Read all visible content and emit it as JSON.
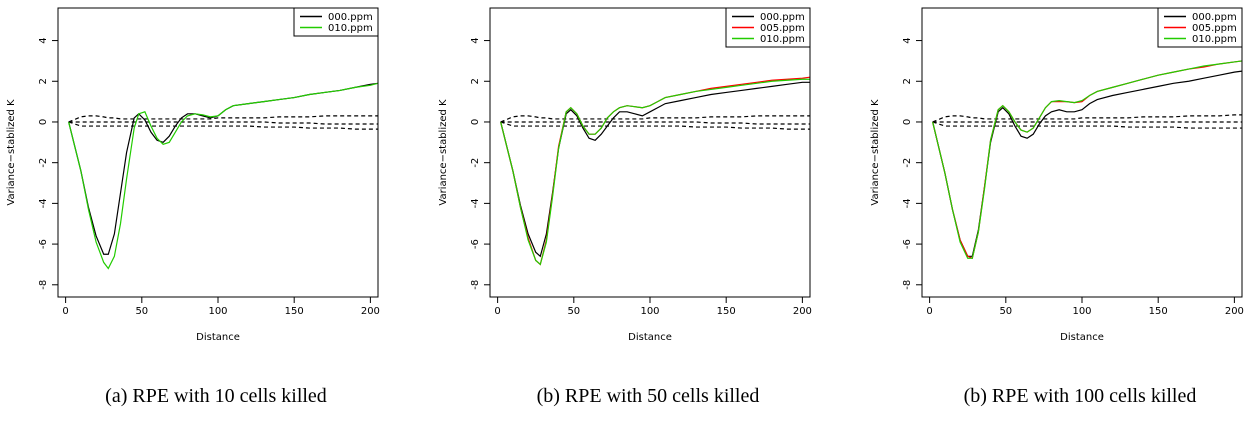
{
  "chart_data": [
    {
      "type": "line",
      "x_label": "Distance",
      "y_label": "Variance−stablized K",
      "caption": "(a) RPE with 10 cells killed",
      "xlim": [
        -5,
        205
      ],
      "ylim": [
        -8.6,
        5.6
      ],
      "xticks": [
        0,
        50,
        100,
        150,
        200
      ],
      "yticks": [
        -8,
        -6,
        -4,
        -2,
        0,
        2,
        4
      ],
      "legend": "top-right",
      "x": [
        2,
        10,
        15,
        20,
        25,
        28,
        32,
        36,
        40,
        45,
        48,
        52,
        56,
        60,
        64,
        68,
        72,
        76,
        80,
        85,
        90,
        95,
        100,
        105,
        110,
        120,
        130,
        140,
        150,
        160,
        170,
        180,
        190,
        200,
        205
      ],
      "series": [
        {
          "name": "000.ppm",
          "color": "#000000",
          "values": [
            0,
            -2.4,
            -4.2,
            -5.6,
            -6.5,
            -6.5,
            -5.5,
            -3.5,
            -1.5,
            0.2,
            0.4,
            0.1,
            -0.5,
            -0.9,
            -1.0,
            -0.7,
            -0.2,
            0.2,
            0.4,
            0.4,
            0.3,
            0.2,
            0.3,
            0.6,
            0.8,
            0.9,
            1.0,
            1.1,
            1.2,
            1.35,
            1.45,
            1.55,
            1.7,
            1.85,
            1.9
          ]
        },
        {
          "name": "010.ppm",
          "color": "#22cc00",
          "values": [
            0,
            -2.4,
            -4.3,
            -5.9,
            -6.9,
            -7.2,
            -6.6,
            -5.0,
            -2.8,
            -0.3,
            0.4,
            0.5,
            -0.2,
            -0.8,
            -1.1,
            -1.0,
            -0.5,
            0.0,
            0.3,
            0.4,
            0.35,
            0.25,
            0.3,
            0.6,
            0.8,
            0.9,
            1.0,
            1.1,
            1.2,
            1.35,
            1.45,
            1.55,
            1.7,
            1.8,
            1.9
          ]
        }
      ],
      "reference_lines": [
        {
          "color": "#000000",
          "style": "dashed",
          "values": [
            0,
            0.25,
            0.3,
            0.3,
            0.25,
            0.2,
            0.2,
            0.15,
            0.15,
            0.15,
            0.15,
            0.15,
            0.15,
            0.15,
            0.15,
            0.15,
            0.15,
            0.15,
            0.15,
            0.15,
            0.15,
            0.15,
            0.2,
            0.2,
            0.2,
            0.2,
            0.2,
            0.25,
            0.25,
            0.25,
            0.3,
            0.3,
            0.3,
            0.3,
            0.3
          ]
        },
        {
          "color": "#000000",
          "style": "dashed",
          "values": [
            0,
            0,
            0,
            0,
            0,
            0,
            0,
            0,
            0,
            0,
            0,
            0,
            0,
            0,
            0,
            0,
            0,
            0,
            0,
            0,
            0,
            0,
            0,
            0,
            0,
            0,
            0,
            -0.05,
            -0.05,
            -0.05,
            -0.1,
            -0.1,
            -0.1,
            -0.1,
            -0.1
          ]
        },
        {
          "color": "#000000",
          "style": "dashed",
          "values": [
            0,
            -0.2,
            -0.2,
            -0.2,
            -0.2,
            -0.2,
            -0.2,
            -0.2,
            -0.2,
            -0.2,
            -0.2,
            -0.2,
            -0.2,
            -0.2,
            -0.2,
            -0.2,
            -0.2,
            -0.2,
            -0.2,
            -0.2,
            -0.2,
            -0.2,
            -0.2,
            -0.2,
            -0.2,
            -0.2,
            -0.25,
            -0.25,
            -0.25,
            -0.3,
            -0.3,
            -0.3,
            -0.35,
            -0.35,
            -0.35
          ]
        }
      ]
    },
    {
      "type": "line",
      "x_label": "Distance",
      "y_label": "Variance−stablized K",
      "caption": "(b) RPE with 50 cells killed",
      "xlim": [
        -5,
        205
      ],
      "ylim": [
        -8.6,
        5.6
      ],
      "xticks": [
        0,
        50,
        100,
        150,
        200
      ],
      "yticks": [
        -8,
        -6,
        -4,
        -2,
        0,
        2,
        4
      ],
      "legend": "top-right",
      "x": [
        2,
        10,
        15,
        20,
        25,
        28,
        32,
        36,
        40,
        45,
        48,
        52,
        56,
        60,
        64,
        68,
        72,
        76,
        80,
        85,
        90,
        95,
        100,
        105,
        110,
        120,
        130,
        140,
        150,
        160,
        170,
        180,
        190,
        200,
        205
      ],
      "series": [
        {
          "name": "000.ppm",
          "color": "#000000",
          "values": [
            0,
            -2.4,
            -4.1,
            -5.5,
            -6.4,
            -6.6,
            -5.5,
            -3.5,
            -1.3,
            0.4,
            0.6,
            0.3,
            -0.3,
            -0.8,
            -0.9,
            -0.6,
            -0.2,
            0.2,
            0.5,
            0.5,
            0.4,
            0.3,
            0.5,
            0.7,
            0.9,
            1.05,
            1.2,
            1.35,
            1.45,
            1.55,
            1.65,
            1.75,
            1.85,
            1.95,
            1.95
          ]
        },
        {
          "name": "005.ppm",
          "color": "#ff0000",
          "values": [
            0,
            -2.4,
            -4.2,
            -5.7,
            -6.8,
            -7.0,
            -5.8,
            -3.6,
            -1.2,
            0.5,
            0.7,
            0.4,
            -0.2,
            -0.6,
            -0.6,
            -0.3,
            0.2,
            0.5,
            0.7,
            0.8,
            0.75,
            0.7,
            0.8,
            1.0,
            1.2,
            1.35,
            1.5,
            1.65,
            1.75,
            1.85,
            1.95,
            2.05,
            2.1,
            2.15,
            2.2
          ]
        },
        {
          "name": "010.ppm",
          "color": "#22cc00",
          "values": [
            0,
            -2.4,
            -4.2,
            -5.8,
            -6.8,
            -7.0,
            -5.9,
            -3.7,
            -1.3,
            0.5,
            0.7,
            0.4,
            -0.2,
            -0.6,
            -0.6,
            -0.3,
            0.2,
            0.5,
            0.7,
            0.8,
            0.75,
            0.7,
            0.8,
            1.0,
            1.2,
            1.35,
            1.5,
            1.6,
            1.7,
            1.8,
            1.9,
            2.0,
            2.05,
            2.1,
            2.1
          ]
        }
      ],
      "reference_lines": [
        {
          "color": "#000000",
          "style": "dashed",
          "values": [
            0,
            0.25,
            0.3,
            0.3,
            0.25,
            0.2,
            0.2,
            0.15,
            0.15,
            0.15,
            0.15,
            0.15,
            0.15,
            0.15,
            0.15,
            0.15,
            0.15,
            0.15,
            0.15,
            0.15,
            0.15,
            0.15,
            0.2,
            0.2,
            0.2,
            0.2,
            0.2,
            0.25,
            0.25,
            0.25,
            0.3,
            0.3,
            0.3,
            0.3,
            0.3
          ]
        },
        {
          "color": "#000000",
          "style": "dashed",
          "values": [
            0,
            0,
            0,
            0,
            0,
            0,
            0,
            0,
            0,
            0,
            0,
            0,
            0,
            0,
            0,
            0,
            0,
            0,
            0,
            0,
            0,
            0,
            0,
            0,
            0,
            0,
            0,
            -0.05,
            -0.05,
            -0.05,
            -0.1,
            -0.1,
            -0.1,
            -0.1,
            -0.1
          ]
        },
        {
          "color": "#000000",
          "style": "dashed",
          "values": [
            0,
            -0.2,
            -0.2,
            -0.2,
            -0.2,
            -0.2,
            -0.2,
            -0.2,
            -0.2,
            -0.2,
            -0.2,
            -0.2,
            -0.2,
            -0.2,
            -0.2,
            -0.2,
            -0.2,
            -0.2,
            -0.2,
            -0.2,
            -0.2,
            -0.2,
            -0.2,
            -0.2,
            -0.2,
            -0.2,
            -0.25,
            -0.25,
            -0.25,
            -0.3,
            -0.3,
            -0.3,
            -0.35,
            -0.35,
            -0.35
          ]
        }
      ]
    },
    {
      "type": "line",
      "x_label": "Distance",
      "y_label": "Variance−stablized K",
      "caption": "(b) RPE with 100 cells killed",
      "xlim": [
        -5,
        205
      ],
      "ylim": [
        -8.6,
        5.6
      ],
      "xticks": [
        0,
        50,
        100,
        150,
        200
      ],
      "yticks": [
        -8,
        -6,
        -4,
        -2,
        0,
        2,
        4
      ],
      "legend": "top-right",
      "x": [
        2,
        10,
        15,
        20,
        25,
        28,
        32,
        36,
        40,
        45,
        48,
        52,
        56,
        60,
        64,
        68,
        72,
        76,
        80,
        85,
        90,
        95,
        100,
        105,
        110,
        120,
        130,
        140,
        150,
        160,
        170,
        180,
        190,
        200,
        205
      ],
      "series": [
        {
          "name": "000.ppm",
          "color": "#000000",
          "values": [
            0,
            -2.5,
            -4.3,
            -5.8,
            -6.6,
            -6.6,
            -5.3,
            -3.2,
            -1.0,
            0.5,
            0.7,
            0.4,
            -0.2,
            -0.7,
            -0.8,
            -0.6,
            -0.1,
            0.3,
            0.5,
            0.6,
            0.5,
            0.5,
            0.6,
            0.9,
            1.1,
            1.3,
            1.45,
            1.6,
            1.75,
            1.9,
            2.0,
            2.15,
            2.3,
            2.45,
            2.5
          ]
        },
        {
          "name": "005.ppm",
          "color": "#ff0000",
          "values": [
            0,
            -2.5,
            -4.3,
            -5.8,
            -6.6,
            -6.7,
            -5.4,
            -3.2,
            -0.9,
            0.6,
            0.8,
            0.5,
            0.0,
            -0.4,
            -0.5,
            -0.3,
            0.2,
            0.7,
            1.0,
            1.0,
            1.0,
            0.95,
            1.0,
            1.3,
            1.5,
            1.7,
            1.9,
            2.1,
            2.3,
            2.45,
            2.6,
            2.7,
            2.85,
            2.95,
            3.0
          ]
        },
        {
          "name": "010.ppm",
          "color": "#22cc00",
          "values": [
            0,
            -2.5,
            -4.3,
            -5.9,
            -6.7,
            -6.7,
            -5.4,
            -3.3,
            -0.9,
            0.6,
            0.8,
            0.5,
            0.0,
            -0.4,
            -0.5,
            -0.3,
            0.2,
            0.7,
            1.0,
            1.05,
            1.0,
            0.95,
            1.05,
            1.3,
            1.5,
            1.7,
            1.9,
            2.1,
            2.3,
            2.45,
            2.6,
            2.75,
            2.85,
            2.95,
            3.0
          ]
        }
      ],
      "reference_lines": [
        {
          "color": "#000000",
          "style": "dashed",
          "values": [
            0,
            0.25,
            0.3,
            0.3,
            0.25,
            0.2,
            0.2,
            0.15,
            0.15,
            0.15,
            0.15,
            0.15,
            0.15,
            0.15,
            0.15,
            0.15,
            0.15,
            0.15,
            0.15,
            0.15,
            0.15,
            0.15,
            0.2,
            0.2,
            0.2,
            0.2,
            0.2,
            0.25,
            0.25,
            0.25,
            0.3,
            0.3,
            0.3,
            0.35,
            0.35
          ]
        },
        {
          "color": "#000000",
          "style": "dashed",
          "values": [
            0,
            0,
            0,
            0,
            0,
            0,
            0,
            0,
            0,
            0,
            0,
            0,
            0,
            0,
            0,
            0,
            0,
            0,
            0,
            0,
            0,
            0,
            0,
            0,
            0,
            0,
            0,
            0,
            0,
            0,
            0,
            0,
            0,
            0,
            0
          ]
        },
        {
          "color": "#000000",
          "style": "dashed",
          "values": [
            0,
            -0.2,
            -0.2,
            -0.2,
            -0.2,
            -0.2,
            -0.2,
            -0.2,
            -0.2,
            -0.2,
            -0.2,
            -0.2,
            -0.2,
            -0.2,
            -0.2,
            -0.2,
            -0.2,
            -0.2,
            -0.2,
            -0.2,
            -0.2,
            -0.2,
            -0.2,
            -0.2,
            -0.2,
            -0.2,
            -0.25,
            -0.25,
            -0.25,
            -0.25,
            -0.3,
            -0.3,
            -0.3,
            -0.3,
            -0.3
          ]
        }
      ]
    }
  ]
}
